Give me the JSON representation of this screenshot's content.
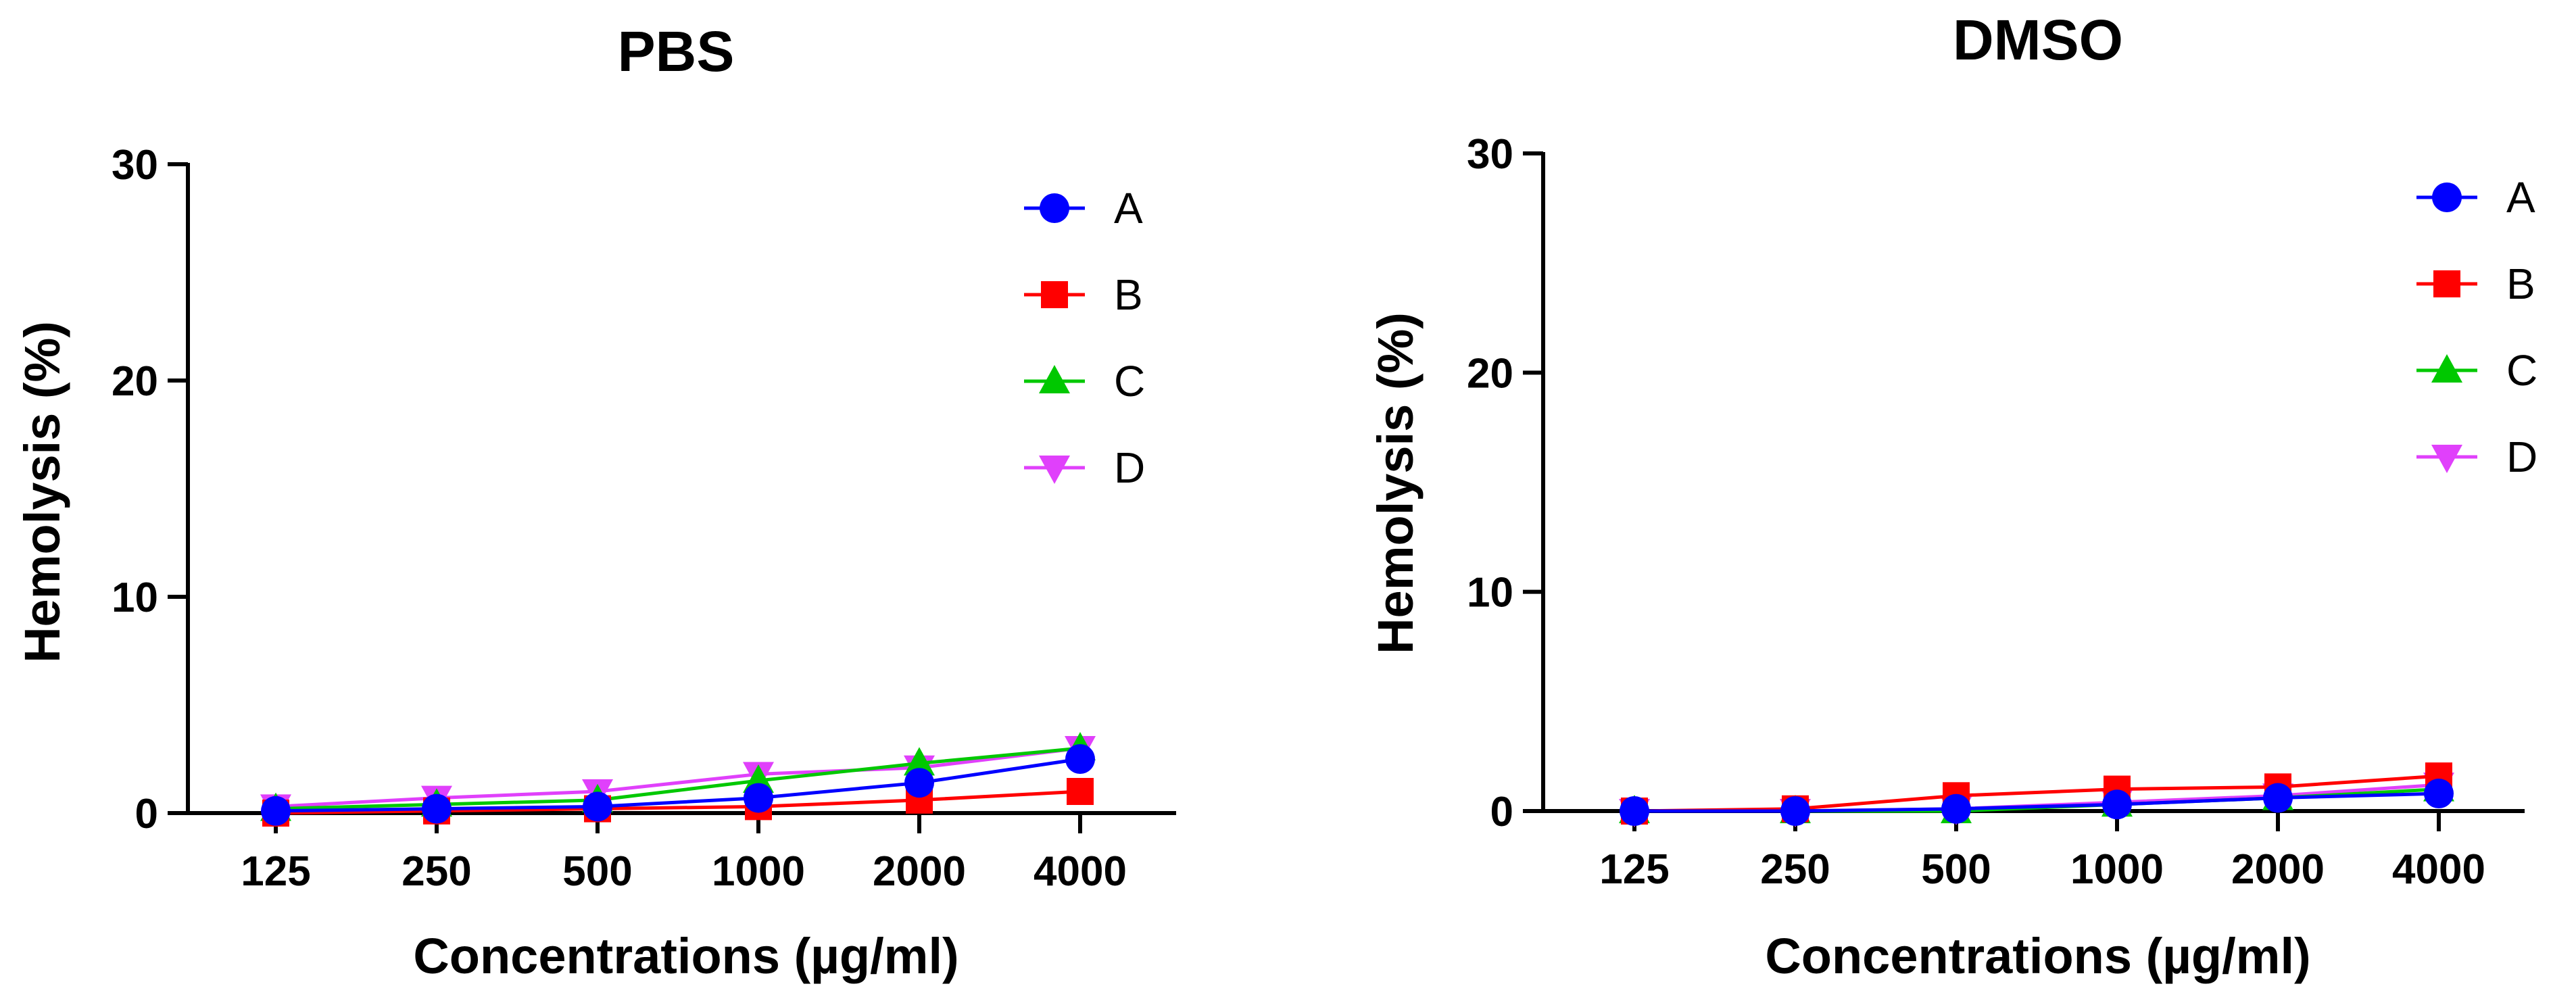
{
  "colors": {
    "A": "#0000ff",
    "B": "#ff0000",
    "C": "#00c800",
    "D": "#e040fb",
    "axis": "#000000"
  },
  "markers": {
    "A": "circle",
    "B": "square",
    "C": "triangle-up",
    "D": "triangle-down"
  },
  "chart_data": [
    {
      "type": "line",
      "title": "PBS",
      "xlabel": "Concentrations (µg/ml)",
      "ylabel": "Hemolysis (%)",
      "categories": [
        "125",
        "250",
        "500",
        "1000",
        "2000",
        "4000"
      ],
      "ylim": [
        0,
        30
      ],
      "yticks": [
        0,
        10,
        20,
        30
      ],
      "legend_position": "top-right",
      "series": [
        {
          "name": "A",
          "values": [
            0.1,
            0.2,
            0.3,
            0.7,
            1.4,
            2.5
          ]
        },
        {
          "name": "B",
          "values": [
            0.0,
            0.1,
            0.2,
            0.3,
            0.6,
            1.0
          ]
        },
        {
          "name": "C",
          "values": [
            0.2,
            0.4,
            0.6,
            1.5,
            2.3,
            3.0
          ]
        },
        {
          "name": "D",
          "values": [
            0.3,
            0.7,
            1.0,
            1.8,
            2.1,
            3.0
          ]
        }
      ]
    },
    {
      "type": "line",
      "title": "DMSO",
      "xlabel": "Concentrations (µg/ml)",
      "ylabel": "Hemolysis (%)",
      "categories": [
        "125",
        "250",
        "500",
        "1000",
        "2000",
        "4000"
      ],
      "ylim": [
        0,
        30
      ],
      "yticks": [
        0,
        10,
        20,
        30
      ],
      "legend_position": "top-right",
      "series": [
        {
          "name": "A",
          "values": [
            0.0,
            0.0,
            0.1,
            0.3,
            0.6,
            0.8
          ]
        },
        {
          "name": "B",
          "values": [
            0.0,
            0.1,
            0.7,
            1.0,
            1.1,
            1.6
          ]
        },
        {
          "name": "C",
          "values": [
            0.0,
            0.0,
            0.0,
            0.3,
            0.6,
            1.0
          ]
        },
        {
          "name": "D",
          "values": [
            0.0,
            0.0,
            0.1,
            0.4,
            0.7,
            1.2
          ]
        }
      ]
    }
  ]
}
